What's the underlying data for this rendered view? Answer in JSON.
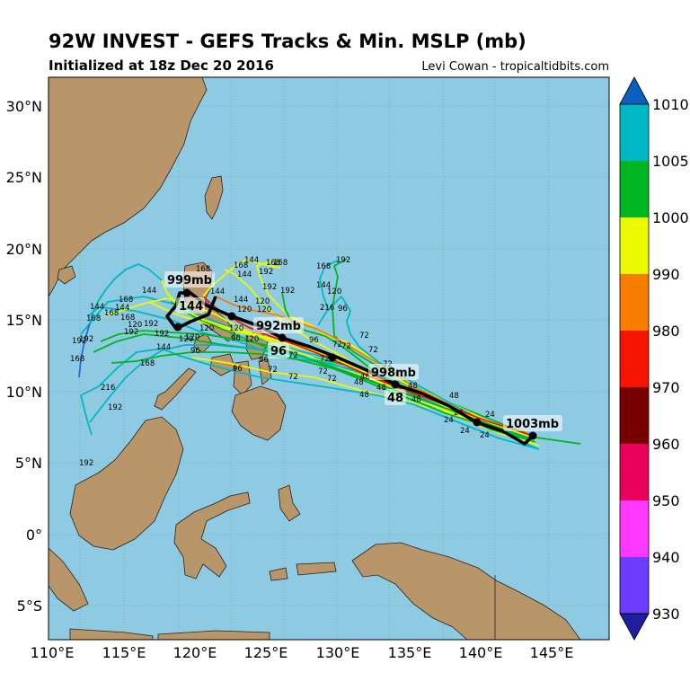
{
  "header": {
    "title": "92W INVEST - GEFS Tracks & Min. MSLP (mb)",
    "subtitle": "Initialized at 18z Dec 20 2016",
    "credit": "Levi Cowan - tropicaltidbits.com"
  },
  "map": {
    "lon_ticks": [
      "110°E",
      "115°E",
      "120°E",
      "125°E",
      "130°E",
      "135°E",
      "140°E",
      "145°E"
    ],
    "lat_ticks": [
      "30°N",
      "25°N",
      "20°N",
      "15°N",
      "10°N",
      "5°N",
      "0°",
      "5°S"
    ],
    "ocean_color": "#8ecbe3",
    "land_color": "#b99669"
  },
  "colorbar": {
    "labels": [
      "1010",
      "1005",
      "1000",
      "990",
      "980",
      "970",
      "960",
      "950",
      "940",
      "930"
    ],
    "colors": [
      "#00b7c4",
      "#00b51f",
      "#ecf900",
      "#f77c00",
      "#f71400",
      "#780000",
      "#e8005a",
      "#ff38ff",
      "#6c3cff",
      "#1e1ea0"
    ]
  },
  "mean_track": {
    "labels": [
      "1003mb",
      "998mb",
      "992mb",
      "999mb"
    ],
    "hours": [
      "48",
      "96",
      "144"
    ]
  },
  "member_hour_labels": [
    "24",
    "48",
    "72",
    "96",
    "120",
    "144",
    "168",
    "192",
    "216"
  ]
}
